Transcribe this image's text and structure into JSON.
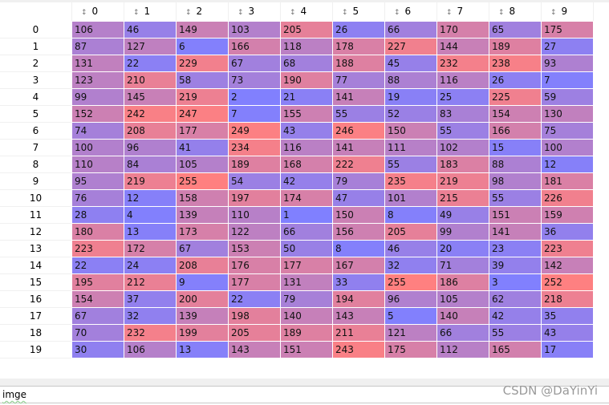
{
  "columns": [
    "0",
    "1",
    "2",
    "3",
    "4",
    "5",
    "6",
    "7",
    "8",
    "9"
  ],
  "index": [
    "0",
    "1",
    "2",
    "3",
    "4",
    "5",
    "6",
    "7",
    "8",
    "9",
    "10",
    "11",
    "12",
    "13",
    "14",
    "15",
    "16",
    "17",
    "18",
    "19"
  ],
  "sort_icon": "sort-arrows-icon",
  "colors": {
    "low": "#8080ff",
    "high": "#ff8080"
  },
  "value_range": [
    0,
    255
  ],
  "rows": [
    [
      106,
      46,
      149,
      103,
      205,
      26,
      66,
      170,
      65,
      175
    ],
    [
      87,
      127,
      6,
      166,
      118,
      178,
      227,
      144,
      189,
      27
    ],
    [
      131,
      22,
      229,
      67,
      68,
      188,
      45,
      232,
      238,
      93
    ],
    [
      123,
      210,
      58,
      73,
      190,
      77,
      88,
      116,
      26,
      7
    ],
    [
      99,
      145,
      219,
      2,
      21,
      141,
      19,
      25,
      225,
      59
    ],
    [
      152,
      242,
      247,
      7,
      155,
      55,
      52,
      83,
      154,
      130
    ],
    [
      74,
      208,
      177,
      249,
      43,
      246,
      150,
      55,
      166,
      75
    ],
    [
      100,
      96,
      41,
      234,
      116,
      141,
      111,
      102,
      15,
      100
    ],
    [
      110,
      84,
      105,
      189,
      168,
      222,
      55,
      183,
      88,
      12
    ],
    [
      95,
      219,
      255,
      54,
      42,
      79,
      235,
      219,
      98,
      181
    ],
    [
      76,
      12,
      158,
      197,
      174,
      47,
      101,
      215,
      55,
      226
    ],
    [
      28,
      4,
      139,
      110,
      1,
      150,
      8,
      49,
      151,
      159
    ],
    [
      180,
      13,
      173,
      122,
      66,
      156,
      205,
      99,
      141,
      36
    ],
    [
      223,
      172,
      67,
      153,
      50,
      8,
      46,
      20,
      23,
      223
    ],
    [
      22,
      24,
      208,
      176,
      177,
      167,
      32,
      71,
      39,
      142
    ],
    [
      195,
      212,
      9,
      177,
      131,
      33,
      255,
      186,
      3,
      252
    ],
    [
      154,
      37,
      200,
      22,
      79,
      194,
      96,
      105,
      62,
      218
    ],
    [
      67,
      32,
      139,
      198,
      140,
      143,
      5,
      140,
      42,
      35
    ],
    [
      70,
      232,
      199,
      205,
      189,
      211,
      121,
      66,
      55,
      43
    ],
    [
      30,
      106,
      13,
      143,
      151,
      243,
      175,
      112,
      165,
      17
    ]
  ],
  "input": {
    "value": "imge"
  },
  "watermark": "CSDN @DaYinYi"
}
